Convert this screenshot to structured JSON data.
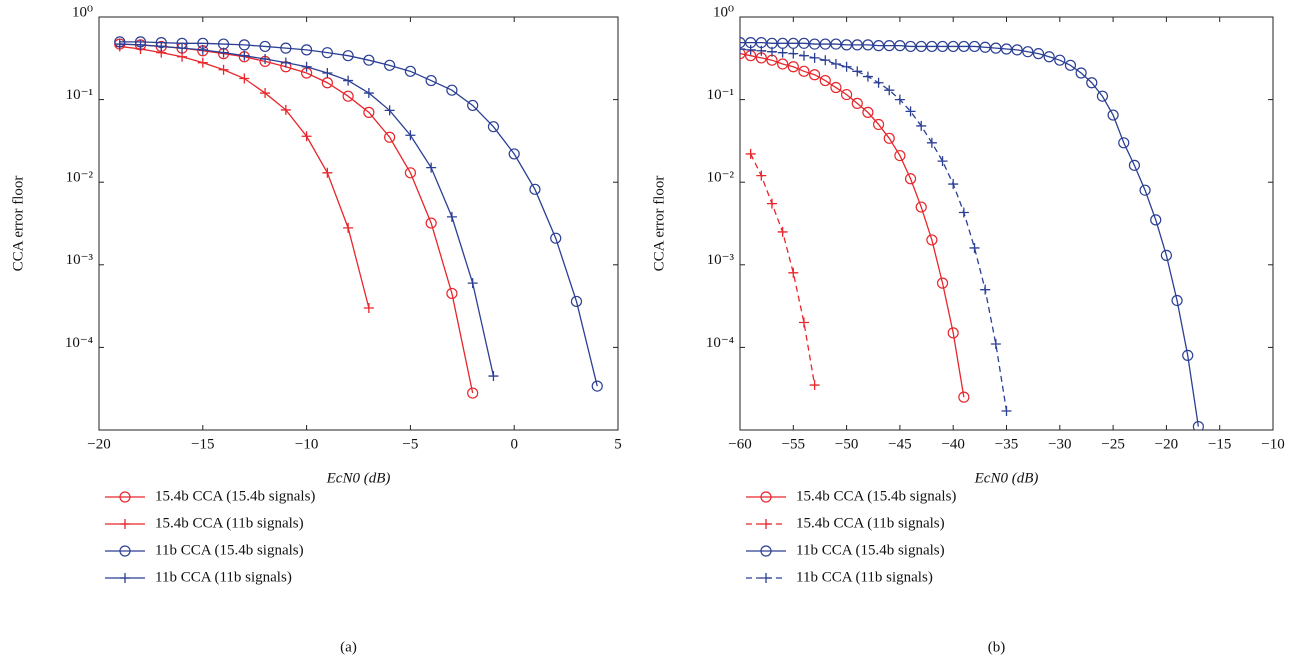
{
  "chart_data": [
    {
      "type": "line",
      "ylabel": "CCA error floor",
      "xlabel": "EcN0 (dB)",
      "caption": "(a)",
      "xlim": [
        -20,
        5
      ],
      "xticks": [
        {
          "value": -20,
          "label": "−20"
        },
        {
          "value": -15,
          "label": "−15"
        },
        {
          "value": -10,
          "label": "−10"
        },
        {
          "value": -5,
          "label": "−5"
        },
        0,
        5
      ],
      "ylim": [
        1e-05,
        1
      ],
      "ylog": true,
      "yticks": [
        {
          "value": 1,
          "label": "10⁰"
        },
        {
          "value": 0.1,
          "label": "10⁻¹"
        },
        {
          "value": 0.01,
          "label": "10⁻²"
        },
        {
          "value": 0.001,
          "label": "10⁻³"
        },
        {
          "value": 0.0001,
          "label": "10⁻⁴"
        }
      ],
      "grid": false,
      "legend": "bottom",
      "series": [
        {
          "name": "15.4b CCA (15.4b signals)",
          "color": "#e8262b",
          "marker": "circle",
          "dash": false,
          "x": [
            -19,
            -18,
            -17,
            -16,
            -15,
            -14,
            -13,
            -12,
            -11,
            -10,
            -9,
            -8,
            -7,
            -6,
            -5,
            -4,
            -3,
            -2
          ],
          "values": [
            0.47,
            0.46,
            0.44,
            0.42,
            0.39,
            0.36,
            0.33,
            0.29,
            0.25,
            0.21,
            0.16,
            0.11,
            0.07,
            0.035,
            0.013,
            0.0032,
            0.00045,
            2.8e-05
          ]
        },
        {
          "name": "15.4b CCA (11b signals)",
          "color": "#e8262b",
          "marker": "plus",
          "dash": false,
          "x": [
            -19,
            -18,
            -17,
            -16,
            -15,
            -14,
            -13,
            -12,
            -11,
            -10,
            -9,
            -8,
            -7
          ],
          "values": [
            0.44,
            0.41,
            0.37,
            0.33,
            0.28,
            0.23,
            0.18,
            0.12,
            0.075,
            0.036,
            0.013,
            0.0028,
            0.0003
          ]
        },
        {
          "name": "11b CCA (15.4b signals)",
          "color": "#2b3f94",
          "marker": "circle",
          "dash": false,
          "x": [
            -19,
            -18,
            -17,
            -16,
            -15,
            -14,
            -13,
            -12,
            -11,
            -10,
            -9,
            -8,
            -7,
            -6,
            -5,
            -4,
            -3,
            -2,
            -1,
            0,
            1,
            2,
            3,
            4
          ],
          "values": [
            0.5,
            0.5,
            0.49,
            0.48,
            0.48,
            0.47,
            0.46,
            0.44,
            0.42,
            0.4,
            0.37,
            0.34,
            0.3,
            0.26,
            0.22,
            0.17,
            0.13,
            0.085,
            0.047,
            0.022,
            0.0082,
            0.0021,
            0.00036,
            3.4e-05
          ]
        },
        {
          "name": "11b CCA (11b signals)",
          "color": "#2b3f94",
          "marker": "plus",
          "dash": false,
          "x": [
            -19,
            -18,
            -17,
            -16,
            -15,
            -14,
            -13,
            -12,
            -11,
            -10,
            -9,
            -8,
            -7,
            -6,
            -5,
            -4,
            -3,
            -2,
            -1
          ],
          "values": [
            0.47,
            0.46,
            0.44,
            0.42,
            0.4,
            0.37,
            0.34,
            0.31,
            0.28,
            0.25,
            0.21,
            0.17,
            0.12,
            0.074,
            0.037,
            0.015,
            0.0038,
            0.0006,
            4.5e-05
          ]
        }
      ]
    },
    {
      "type": "line",
      "ylabel": "CCA error floor",
      "xlabel": "EcN0 (dB)",
      "caption": "(b)",
      "xlim": [
        -60,
        -10
      ],
      "xticks": [
        {
          "value": -60,
          "label": "−60"
        },
        {
          "value": -55,
          "label": "−55"
        },
        {
          "value": -50,
          "label": "−50"
        },
        {
          "value": -45,
          "label": "−45"
        },
        {
          "value": -40,
          "label": "−40"
        },
        {
          "value": -35,
          "label": "−35"
        },
        {
          "value": -30,
          "label": "−30"
        },
        {
          "value": -25,
          "label": "−25"
        },
        {
          "value": -20,
          "label": "−20"
        },
        {
          "value": -15,
          "label": "−15"
        },
        {
          "value": -10,
          "label": "−10"
        }
      ],
      "ylim": [
        1e-05,
        1
      ],
      "ylog": true,
      "yticks": [
        {
          "value": 1,
          "label": "10⁰"
        },
        {
          "value": 0.1,
          "label": "10⁻¹"
        },
        {
          "value": 0.01,
          "label": "10⁻²"
        },
        {
          "value": 0.001,
          "label": "10⁻³"
        },
        {
          "value": 0.0001,
          "label": "10⁻⁴"
        }
      ],
      "grid": false,
      "legend": "bottom",
      "series": [
        {
          "name": "15.4b CCA (15.4b signals)",
          "color": "#e8262b",
          "marker": "circle",
          "dash": false,
          "x": [
            -60,
            -59,
            -58,
            -57,
            -56,
            -55,
            -54,
            -53,
            -52,
            -51,
            -50,
            -49,
            -48,
            -47,
            -46,
            -45,
            -44,
            -43,
            -42,
            -41,
            -40,
            -39
          ],
          "values": [
            0.36,
            0.34,
            0.32,
            0.3,
            0.27,
            0.25,
            0.22,
            0.2,
            0.17,
            0.14,
            0.115,
            0.09,
            0.07,
            0.05,
            0.034,
            0.021,
            0.011,
            0.005,
            0.002,
            0.0006,
            0.00015,
            2.5e-05
          ]
        },
        {
          "name": "15.4b CCA (11b signals)",
          "color": "#e8262b",
          "marker": "plus",
          "dash": true,
          "x": [
            -59,
            -58,
            -57,
            -56,
            -55,
            -54,
            -53
          ],
          "values": [
            0.022,
            0.012,
            0.0055,
            0.0025,
            0.0008,
            0.0002,
            3.5e-05
          ]
        },
        {
          "name": "11b CCA (15.4b signals)",
          "color": "#2b3f94",
          "marker": "circle",
          "dash": false,
          "x": [
            -60,
            -59,
            -58,
            -57,
            -56,
            -55,
            -54,
            -53,
            -52,
            -51,
            -50,
            -49,
            -48,
            -47,
            -46,
            -45,
            -44,
            -43,
            -42,
            -41,
            -40,
            -39,
            -38,
            -37,
            -36,
            -35,
            -34,
            -33,
            -32,
            -31,
            -30,
            -29,
            -28,
            -27,
            -26,
            -25,
            -24,
            -23,
            -22,
            -21,
            -20,
            -19,
            -18,
            -17
          ],
          "values": [
            0.49,
            0.49,
            0.49,
            0.48,
            0.48,
            0.48,
            0.48,
            0.47,
            0.47,
            0.47,
            0.46,
            0.46,
            0.46,
            0.45,
            0.45,
            0.45,
            0.44,
            0.44,
            0.44,
            0.44,
            0.44,
            0.44,
            0.44,
            0.43,
            0.42,
            0.41,
            0.4,
            0.38,
            0.36,
            0.33,
            0.3,
            0.26,
            0.21,
            0.16,
            0.11,
            0.065,
            0.03,
            0.016,
            0.008,
            0.0035,
            0.0013,
            0.00037,
            8e-05,
            1.1e-05
          ]
        },
        {
          "name": "11b CCA (11b signals)",
          "color": "#2b3f94",
          "marker": "plus",
          "dash": true,
          "x": [
            -60,
            -59,
            -58,
            -57,
            -56,
            -55,
            -54,
            -53,
            -52,
            -51,
            -50,
            -49,
            -48,
            -47,
            -46,
            -45,
            -44,
            -43,
            -42,
            -41,
            -40,
            -39,
            -38,
            -37,
            -36,
            -35
          ],
          "values": [
            0.41,
            0.4,
            0.39,
            0.38,
            0.37,
            0.36,
            0.34,
            0.32,
            0.3,
            0.27,
            0.25,
            0.22,
            0.19,
            0.16,
            0.13,
            0.1,
            0.072,
            0.048,
            0.03,
            0.018,
            0.0095,
            0.0043,
            0.0016,
            0.0005,
            0.00011,
            1.7e-05
          ]
        }
      ]
    }
  ]
}
